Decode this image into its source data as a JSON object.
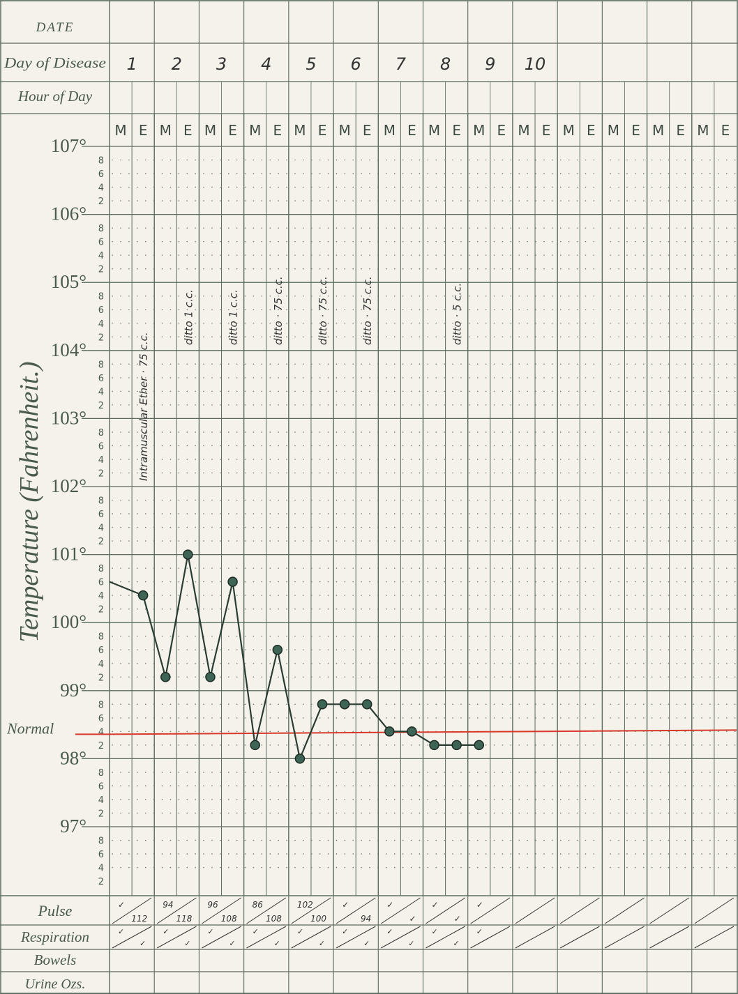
{
  "header": {
    "date_label": "DATE",
    "day_label": "Day of Disease",
    "hour_label": "Hour of Day",
    "days": [
      "1",
      "2",
      "3",
      "4",
      "5",
      "6",
      "7",
      "8",
      "9",
      "10"
    ]
  },
  "me": [
    "M",
    "E"
  ],
  "axis": {
    "ylabel": "Temperature (Fahrenheit.)",
    "major_ticks": [
      "107°",
      "106°",
      "105°",
      "104°",
      "103°",
      "102°",
      "101°",
      "100°",
      "99°",
      "98°",
      "97°"
    ],
    "minor_ticks": [
      "8",
      "6",
      "4",
      "2"
    ],
    "normal_label": "Normal"
  },
  "footer": {
    "pulse_label": "Pulse",
    "respiration_label": "Respiration",
    "bowels_label": "Bowels",
    "urine_label": "Urine Ozs."
  },
  "annotations": [
    {
      "text": "Intramuscular Ether · 75 c.c.",
      "col": 1
    },
    {
      "text": "ditto 1 c.c.",
      "col": 3
    },
    {
      "text": "ditto 1 c.c.",
      "col": 5
    },
    {
      "text": "ditto · 75 c.c.",
      "col": 7
    },
    {
      "text": "ditto · 75 c.c.",
      "col": 9
    },
    {
      "text": "ditto · 75 c.c.",
      "col": 11
    },
    {
      "text": "ditto · 5 c.c.",
      "col": 15
    }
  ],
  "pulse": [
    {
      "col": 0,
      "m": "✓",
      "e": "112"
    },
    {
      "col": 1,
      "m": "94",
      "e": "118"
    },
    {
      "col": 2,
      "m": "96",
      "e": "108"
    },
    {
      "col": 3,
      "m": "86",
      "e": "108"
    },
    {
      "col": 4,
      "m": "102",
      "e": "100"
    },
    {
      "col": 5,
      "m": "✓",
      "e": "94"
    },
    {
      "col": 6,
      "m": "✓",
      "e": "✓"
    },
    {
      "col": 7,
      "m": "✓",
      "e": "✓"
    },
    {
      "col": 8,
      "m": "✓",
      "e": ""
    }
  ],
  "respiration": [
    {
      "col": 0,
      "m": "✓",
      "e": "✓"
    },
    {
      "col": 1,
      "m": "✓",
      "e": "✓"
    },
    {
      "col": 2,
      "m": "✓",
      "e": "✓"
    },
    {
      "col": 3,
      "m": "✓",
      "e": "✓"
    },
    {
      "col": 4,
      "m": "✓",
      "e": "✓"
    },
    {
      "col": 5,
      "m": "✓",
      "e": "✓"
    },
    {
      "col": 6,
      "m": "✓",
      "e": "✓"
    },
    {
      "col": 7,
      "m": "✓",
      "e": "✓"
    },
    {
      "col": 8,
      "m": "✓",
      "e": ""
    }
  ],
  "chart_data": {
    "type": "line",
    "xlabel": "",
    "ylabel": "Temperature (Fahrenheit.)",
    "ylim": [
      96.2,
      107.2
    ],
    "normal_line": 98.4,
    "start_value": 100.6,
    "x": [
      "1 E",
      "2 M",
      "2 E",
      "3 M",
      "3 E",
      "4 M",
      "4 E",
      "5 M",
      "5 E",
      "6 M",
      "6 E",
      "7 M",
      "7 E",
      "8 M",
      "8 E",
      "9 M"
    ],
    "values": [
      100.4,
      99.2,
      101.0,
      99.2,
      100.6,
      98.2,
      99.6,
      98.0,
      98.8,
      98.8,
      98.8,
      98.4,
      98.4,
      98.2,
      98.2,
      98.2
    ],
    "colors": {
      "line": "#2a3d33",
      "point": "#3e6456",
      "normal": "#d8392a",
      "grid": "#5a6a5e"
    }
  }
}
